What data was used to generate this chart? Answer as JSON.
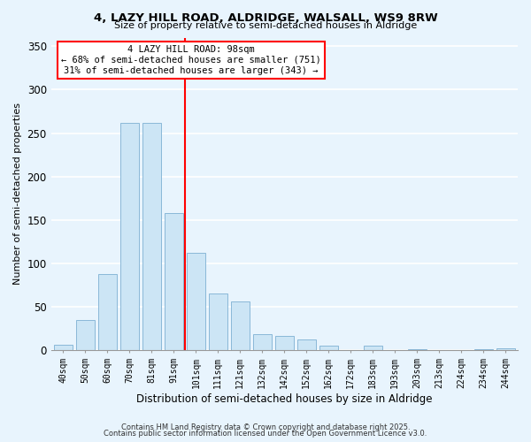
{
  "title1": "4, LAZY HILL ROAD, ALDRIDGE, WALSALL, WS9 8RW",
  "title2": "Size of property relative to semi-detached houses in Aldridge",
  "xlabel": "Distribution of semi-detached houses by size in Aldridge",
  "ylabel": "Number of semi-detached properties",
  "bar_labels": [
    "40sqm",
    "50sqm",
    "60sqm",
    "70sqm",
    "81sqm",
    "91sqm",
    "101sqm",
    "111sqm",
    "121sqm",
    "132sqm",
    "142sqm",
    "152sqm",
    "162sqm",
    "172sqm",
    "183sqm",
    "193sqm",
    "203sqm",
    "213sqm",
    "224sqm",
    "234sqm",
    "244sqm"
  ],
  "bar_values": [
    6,
    35,
    88,
    262,
    262,
    158,
    112,
    65,
    56,
    18,
    16,
    12,
    5,
    0,
    5,
    0,
    1,
    0,
    0,
    1,
    2
  ],
  "bar_color": "#cce5f5",
  "bar_edge_color": "#8ab8d8",
  "vline_x": 5.5,
  "vline_color": "red",
  "annotation_title": "4 LAZY HILL ROAD: 98sqm",
  "annotation_line1": "← 68% of semi-detached houses are smaller (751)",
  "annotation_line2": "31% of semi-detached houses are larger (343) →",
  "annotation_box_color": "white",
  "annotation_box_edge": "red",
  "ylim": [
    0,
    360
  ],
  "footer1": "Contains HM Land Registry data © Crown copyright and database right 2025.",
  "footer2": "Contains public sector information licensed under the Open Government Licence v3.0.",
  "bg_color": "#e8f4fd"
}
